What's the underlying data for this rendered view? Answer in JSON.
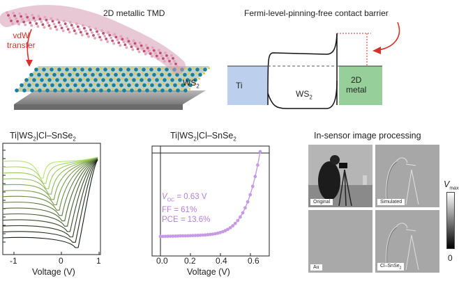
{
  "panel_a": {
    "tmd_label": "2D metallic TMD",
    "vdw_line1": "vdW",
    "vdw_line2": "transfer",
    "ws2_label": "WS",
    "ws2_sub": "2"
  },
  "panel_b": {
    "title": "Fermi-level-pinning-free contact barrier",
    "ti_label": "Ti",
    "ws2_label": "WS",
    "ws2_sub": "2",
    "metal_line1": "2D",
    "metal_line2": "metal",
    "colors": {
      "ti": "#bcd0ee",
      "metal": "#96cf9a",
      "arrow": "#d2332a"
    }
  },
  "panel_c": {
    "title_pre": "Ti|WS",
    "title_sub": "2",
    "title_post": "|Cl–SnSe",
    "title_sub2": "2",
    "xlabel": "Voltage (V)",
    "ticks": [
      "-1",
      "0",
      "1"
    ]
  },
  "panel_d": {
    "title_pre": "Ti|WS",
    "title_sub": "2",
    "title_post": "|Cl–SnSe",
    "title_sub2": "2",
    "xlabel": "Voltage (V)",
    "ticks": [
      "0.0",
      "0.2",
      "0.4",
      "0.6"
    ],
    "voc_label": "V",
    "voc_sub": "OC",
    "voc_value": " = 0.63 V",
    "ff": "FF = 61%",
    "pce": "PCE = 13.6%",
    "color": "#c79ae6"
  },
  "panel_e": {
    "title": "In-sensor image processing",
    "images": [
      "Original",
      "Simulated",
      "Au",
      "Cl–SnSe"
    ],
    "img4_sub": "2",
    "colorbar_label": "V",
    "colorbar_sub": "max",
    "colorbar_min": "0"
  }
}
